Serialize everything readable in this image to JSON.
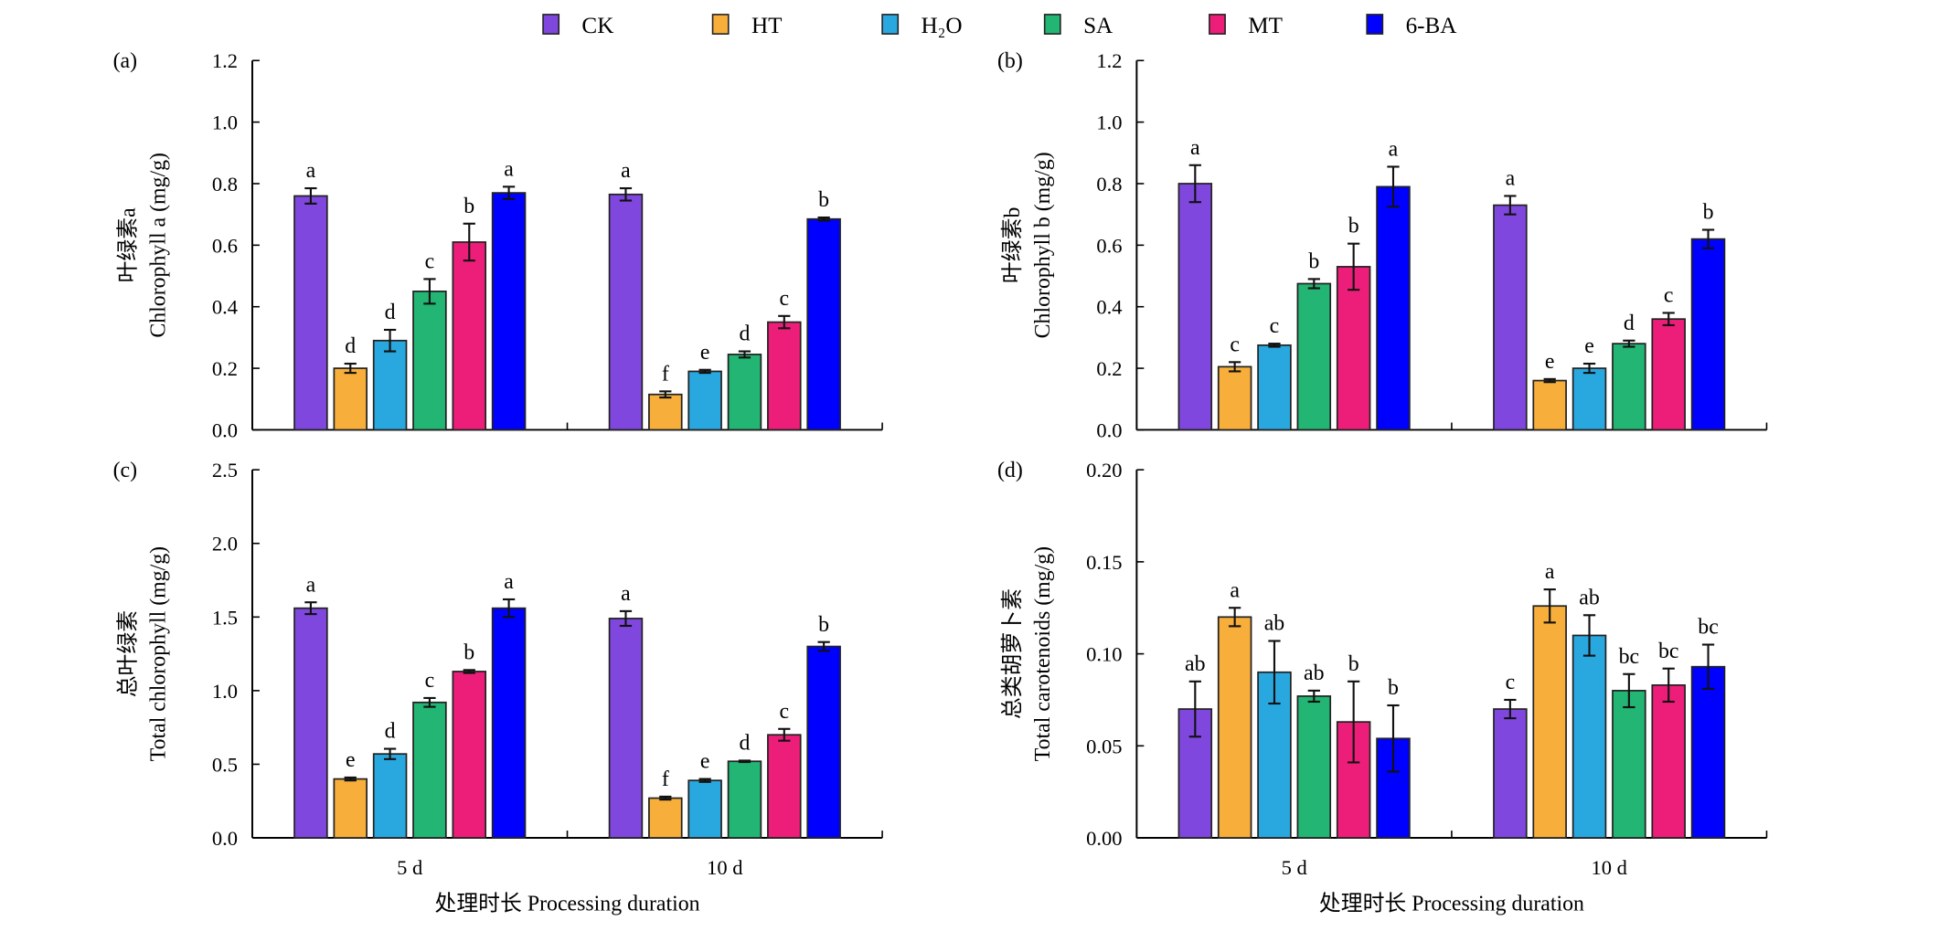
{
  "legend": [
    {
      "name": "CK",
      "color": "#7f47dd"
    },
    {
      "name": "HT",
      "color": "#f8ae3a"
    },
    {
      "name": "H₂O",
      "color": "#29a8e0"
    },
    {
      "name": "SA",
      "color": "#22b573"
    },
    {
      "name": "MT",
      "color": "#ed1e79"
    },
    {
      "name": "6-BA",
      "color": "#0000ff"
    }
  ],
  "chart_data": [
    {
      "type": "bar",
      "panel": "(a)",
      "ylabel_cn": "叶绿素a",
      "ylabel": "Chlorophyll a (mg/g)",
      "xlabel": "",
      "categories": [
        "5 d",
        "10 d"
      ],
      "ylim": [
        0,
        1.2
      ],
      "yticks": [
        "0.0",
        "0.2",
        "0.4",
        "0.6",
        "0.8",
        "1.0",
        "1.2"
      ],
      "series": [
        {
          "name": "CK",
          "values": [
            0.76,
            0.765
          ],
          "errors": [
            0.025,
            0.02
          ],
          "letters": [
            "a",
            "a"
          ]
        },
        {
          "name": "HT",
          "values": [
            0.2,
            0.115
          ],
          "errors": [
            0.015,
            0.01
          ],
          "letters": [
            "d",
            "f"
          ]
        },
        {
          "name": "H₂O",
          "values": [
            0.29,
            0.19
          ],
          "errors": [
            0.035,
            0.005
          ],
          "letters": [
            "d",
            "e"
          ]
        },
        {
          "name": "SA",
          "values": [
            0.45,
            0.245
          ],
          "errors": [
            0.04,
            0.01
          ],
          "letters": [
            "c",
            "d"
          ]
        },
        {
          "name": "MT",
          "values": [
            0.61,
            0.35
          ],
          "errors": [
            0.06,
            0.02
          ],
          "letters": [
            "b",
            "c"
          ]
        },
        {
          "name": "6-BA",
          "values": [
            0.77,
            0.685
          ],
          "errors": [
            0.02,
            0.005
          ],
          "letters": [
            "a",
            "b"
          ]
        }
      ]
    },
    {
      "type": "bar",
      "panel": "(b)",
      "ylabel_cn": "叶绿素b",
      "ylabel": "Chlorophyll b (mg/g)",
      "xlabel": "",
      "categories": [
        "5 d",
        "10 d"
      ],
      "ylim": [
        0,
        1.2
      ],
      "yticks": [
        "0.0",
        "0.2",
        "0.4",
        "0.6",
        "0.8",
        "1.0",
        "1.2"
      ],
      "series": [
        {
          "name": "CK",
          "values": [
            0.8,
            0.73
          ],
          "errors": [
            0.06,
            0.03
          ],
          "letters": [
            "a",
            "a"
          ]
        },
        {
          "name": "HT",
          "values": [
            0.205,
            0.16
          ],
          "errors": [
            0.015,
            0.005
          ],
          "letters": [
            "c",
            "e"
          ]
        },
        {
          "name": "H₂O",
          "values": [
            0.275,
            0.2
          ],
          "errors": [
            0.005,
            0.015
          ],
          "letters": [
            "c",
            "e"
          ]
        },
        {
          "name": "SA",
          "values": [
            0.475,
            0.28
          ],
          "errors": [
            0.015,
            0.01
          ],
          "letters": [
            "b",
            "d"
          ]
        },
        {
          "name": "MT",
          "values": [
            0.53,
            0.36
          ],
          "errors": [
            0.075,
            0.02
          ],
          "letters": [
            "b",
            "c"
          ]
        },
        {
          "name": "6-BA",
          "values": [
            0.79,
            0.62
          ],
          "errors": [
            0.065,
            0.03
          ],
          "letters": [
            "a",
            "b"
          ]
        }
      ]
    },
    {
      "type": "bar",
      "panel": "(c)",
      "ylabel_cn": "总叶绿素",
      "ylabel": "Total chlorophyll (mg/g)",
      "xlabel": "处理时长 Processing duration",
      "categories": [
        "5 d",
        "10 d"
      ],
      "ylim": [
        0,
        2.5
      ],
      "yticks": [
        "0.0",
        "0.5",
        "1.0",
        "1.5",
        "2.0",
        "2.5"
      ],
      "series": [
        {
          "name": "CK",
          "values": [
            1.56,
            1.49
          ],
          "errors": [
            0.04,
            0.05
          ],
          "letters": [
            "a",
            "a"
          ]
        },
        {
          "name": "HT",
          "values": [
            0.4,
            0.27
          ],
          "errors": [
            0.01,
            0.01
          ],
          "letters": [
            "e",
            "f"
          ]
        },
        {
          "name": "H₂O",
          "values": [
            0.57,
            0.39
          ],
          "errors": [
            0.035,
            0.01
          ],
          "letters": [
            "d",
            "e"
          ]
        },
        {
          "name": "SA",
          "values": [
            0.92,
            0.52
          ],
          "errors": [
            0.03,
            0.005
          ],
          "letters": [
            "c",
            "d"
          ]
        },
        {
          "name": "MT",
          "values": [
            1.13,
            0.7
          ],
          "errors": [
            0.01,
            0.04
          ],
          "letters": [
            "b",
            "c"
          ]
        },
        {
          "name": "6-BA",
          "values": [
            1.56,
            1.3
          ],
          "errors": [
            0.06,
            0.03
          ],
          "letters": [
            "a",
            "b"
          ]
        }
      ]
    },
    {
      "type": "bar",
      "panel": "(d)",
      "ylabel_cn": "总类胡萝卜素",
      "ylabel": "Total carotenoids (mg/g)",
      "xlabel": "处理时长 Processing duration",
      "categories": [
        "5 d",
        "10 d"
      ],
      "ylim": [
        0,
        0.2
      ],
      "yticks": [
        "0.00",
        "0.05",
        "0.10",
        "0.15",
        "0.20"
      ],
      "series": [
        {
          "name": "CK",
          "values": [
            0.07,
            0.07
          ],
          "errors": [
            0.015,
            0.005
          ],
          "letters": [
            "ab",
            "c"
          ]
        },
        {
          "name": "HT",
          "values": [
            0.12,
            0.126
          ],
          "errors": [
            0.005,
            0.009
          ],
          "letters": [
            "a",
            "a"
          ]
        },
        {
          "name": "H₂O",
          "values": [
            0.09,
            0.11
          ],
          "errors": [
            0.017,
            0.011
          ],
          "letters": [
            "ab",
            "ab"
          ]
        },
        {
          "name": "SA",
          "values": [
            0.077,
            0.08
          ],
          "errors": [
            0.003,
            0.009
          ],
          "letters": [
            "ab",
            "bc"
          ]
        },
        {
          "name": "MT",
          "values": [
            0.063,
            0.083
          ],
          "errors": [
            0.022,
            0.009
          ],
          "letters": [
            "b",
            "bc"
          ]
        },
        {
          "name": "6-BA",
          "values": [
            0.054,
            0.093
          ],
          "errors": [
            0.018,
            0.012
          ],
          "letters": [
            "b",
            "bc"
          ]
        }
      ]
    }
  ]
}
